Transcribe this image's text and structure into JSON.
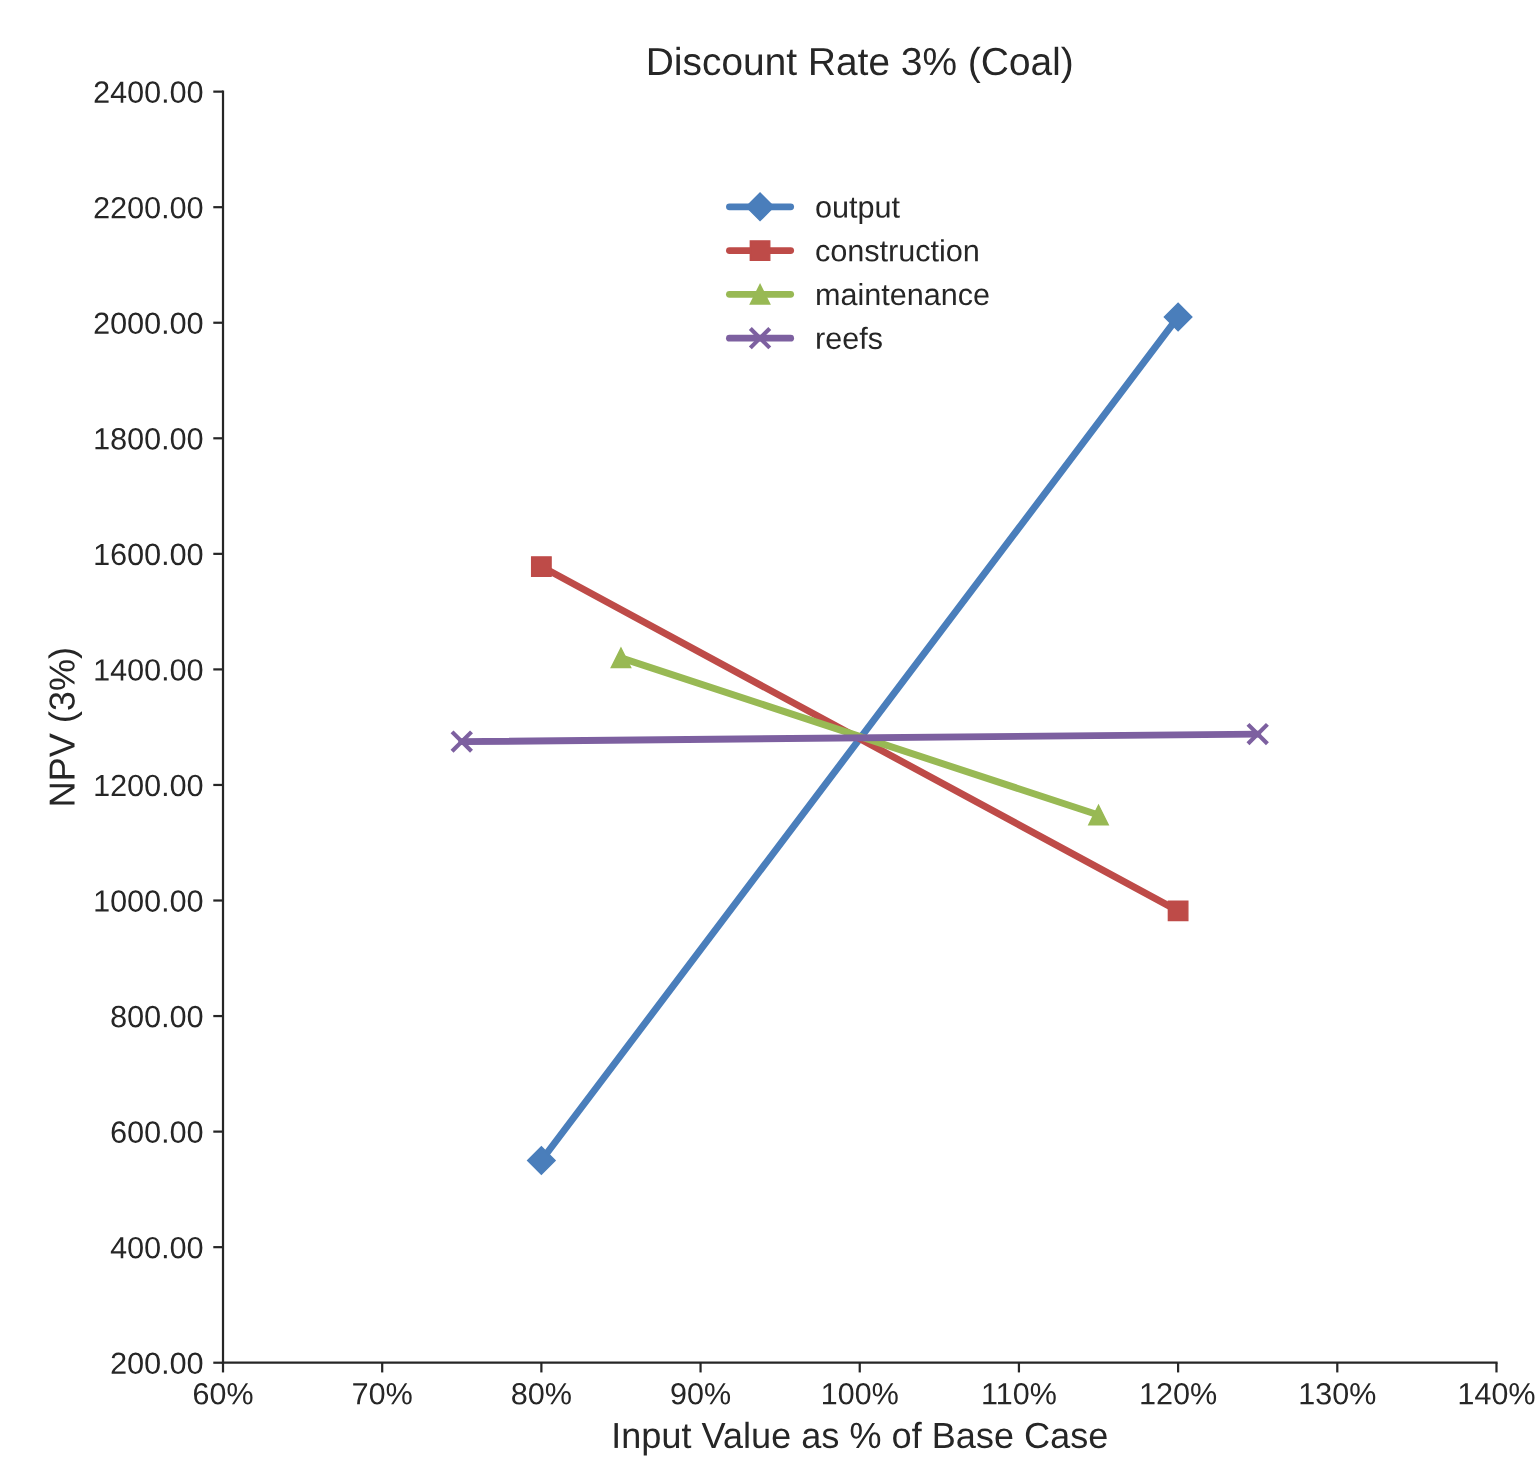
{
  "chart_data": {
    "type": "line",
    "title": "Discount Rate 3% (Coal)",
    "xlabel": "Input Value as % of Base Case",
    "ylabel": "NPV (3%)",
    "series": [
      {
        "name": "output",
        "color": "#4a7ebb",
        "marker": "diamond",
        "x": [
          80,
          120
        ],
        "values": [
          550,
          2010
        ]
      },
      {
        "name": "construction",
        "color": "#be4b48",
        "marker": "square",
        "x": [
          80,
          120
        ],
        "values": [
          1578,
          982
        ]
      },
      {
        "name": "maintenance",
        "color": "#98b954",
        "marker": "triangle",
        "x": [
          85,
          115
        ],
        "values": [
          1420,
          1148
        ]
      },
      {
        "name": "reefs",
        "color": "#7d60a0",
        "marker": "cross",
        "x": [
          75,
          125
        ],
        "values": [
          1275,
          1288
        ]
      }
    ],
    "xlim": [
      60,
      140
    ],
    "xticks": [
      {
        "value": 60,
        "label": "60%"
      },
      {
        "value": 70,
        "label": "70%"
      },
      {
        "value": 80,
        "label": "80%"
      },
      {
        "value": 90,
        "label": "90%"
      },
      {
        "value": 100,
        "label": "100%"
      },
      {
        "value": 110,
        "label": "110%"
      },
      {
        "value": 120,
        "label": "120%"
      },
      {
        "value": 130,
        "label": "130%"
      },
      {
        "value": 140,
        "label": "140%"
      }
    ],
    "ylim": [
      200,
      2400
    ],
    "yticks": [
      {
        "value": 200,
        "label": "200.00"
      },
      {
        "value": 400,
        "label": "400.00"
      },
      {
        "value": 600,
        "label": "600.00"
      },
      {
        "value": 800,
        "label": "800.00"
      },
      {
        "value": 1000,
        "label": "1000.00"
      },
      {
        "value": 1200,
        "label": "1200.00"
      },
      {
        "value": 1400,
        "label": "1400.00"
      },
      {
        "value": 1600,
        "label": "1600.00"
      },
      {
        "value": 1800,
        "label": "1800.00"
      },
      {
        "value": 2000,
        "label": "2000.00"
      },
      {
        "value": 2200,
        "label": "2200.00"
      },
      {
        "value": 2400,
        "label": "2400.00"
      }
    ],
    "grid": false,
    "legend": "top",
    "line_style": "solid"
  }
}
